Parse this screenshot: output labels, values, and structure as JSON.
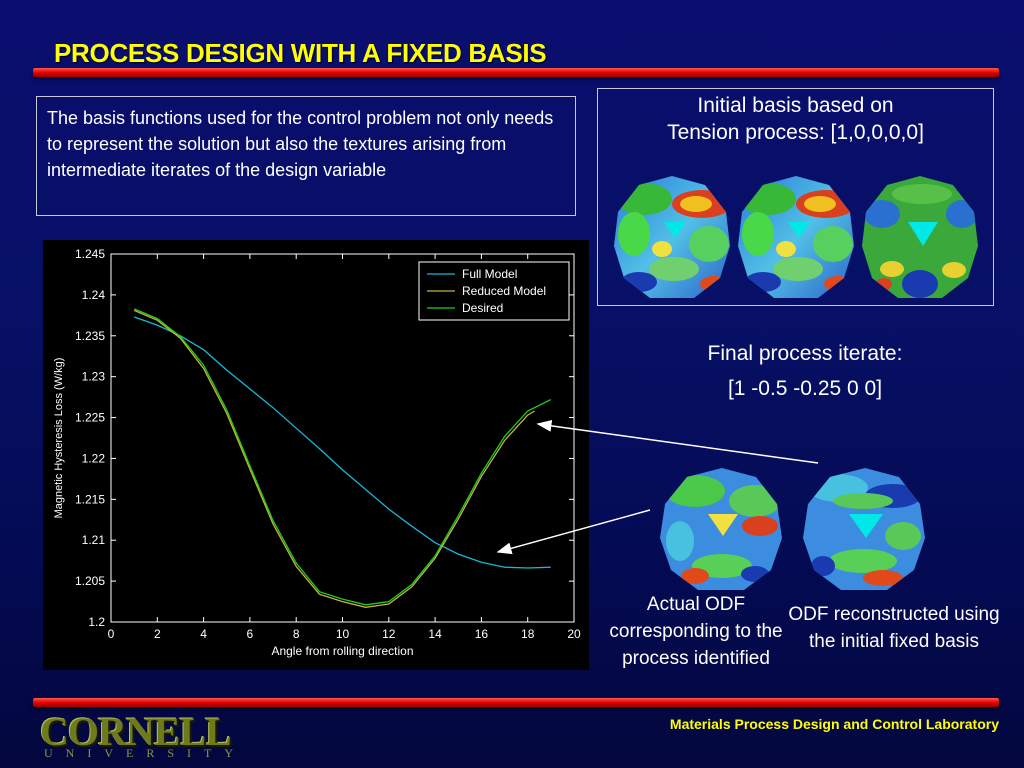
{
  "slide": {
    "title": "PROCESS DESIGN WITH A FIXED BASIS",
    "description": "The basis functions used for the control problem not only needs to represent the solution but also the textures arising from intermediate iterates of the design variable",
    "initial_basis_line1": "Initial basis based on",
    "initial_basis_line2": "Tension process: [1,0,0,0,0]",
    "final_iterate_line1": "Final process iterate:",
    "final_iterate_line2": "[1 -0.5 -0.25 0 0]",
    "caption_actual": "Actual ODF corresponding to the process identified",
    "caption_reconstructed": "ODF reconstructed using the initial fixed basis",
    "footer": "Materials Process Design and Control Laboratory",
    "logo_main": "CORNELL",
    "logo_sub": "UNIVERSITY"
  },
  "colors": {
    "title": "#ffff00",
    "accent_bar": "#e60000",
    "full_model": "#19b6d6",
    "reduced_model": "#c8b43c",
    "desired": "#1ecf1e"
  },
  "chart_data": {
    "type": "line",
    "xlabel": "Angle from rolling direction",
    "ylabel": "Magnetic Hysteresis Loss (W/kg)",
    "xlim": [
      0,
      20
    ],
    "ylim": [
      1.2,
      1.245
    ],
    "xticks": [
      "0",
      "2",
      "4",
      "6",
      "8",
      "10",
      "12",
      "14",
      "16",
      "18",
      "20"
    ],
    "yticks": [
      "1.2",
      "1.205",
      "1.21",
      "1.215",
      "1.22",
      "1.225",
      "1.23",
      "1.235",
      "1.24",
      "1.245"
    ],
    "legend": "top-right",
    "series": [
      {
        "name": "Full Model",
        "x": [
          1,
          2,
          3,
          4,
          5,
          6,
          7,
          8,
          9,
          10,
          11,
          12,
          13,
          14,
          15,
          16,
          17,
          18,
          19
        ],
        "y": [
          1.2373,
          1.2363,
          1.235,
          1.2333,
          1.2308,
          1.2285,
          1.2262,
          1.2237,
          1.2212,
          1.2186,
          1.2162,
          1.2138,
          1.2117,
          1.2097,
          1.2083,
          1.2073,
          1.2067,
          1.2066,
          1.2067
        ]
      },
      {
        "name": "Reduced Model",
        "x": [
          1,
          2,
          3,
          4,
          5,
          6,
          7,
          8,
          9,
          10,
          11,
          12,
          13,
          14,
          15,
          16,
          17,
          18,
          18.3
        ],
        "y": [
          1.2381,
          1.2369,
          1.2347,
          1.231,
          1.2255,
          1.2187,
          1.212,
          1.2068,
          1.2034,
          1.2025,
          1.2018,
          1.2022,
          1.2043,
          1.2078,
          1.2126,
          1.2178,
          1.2222,
          1.2253,
          1.2258
        ]
      },
      {
        "name": "Desired",
        "x": [
          1,
          2,
          3,
          4,
          5,
          6,
          7,
          8,
          9,
          10,
          11,
          12,
          13,
          14,
          15,
          16,
          17,
          18,
          19
        ],
        "y": [
          1.2383,
          1.2371,
          1.2349,
          1.2314,
          1.2259,
          1.2191,
          1.2124,
          1.2072,
          1.2037,
          1.2028,
          1.2021,
          1.2025,
          1.2046,
          1.2081,
          1.213,
          1.2182,
          1.2227,
          1.2258,
          1.2272
        ]
      }
    ]
  }
}
